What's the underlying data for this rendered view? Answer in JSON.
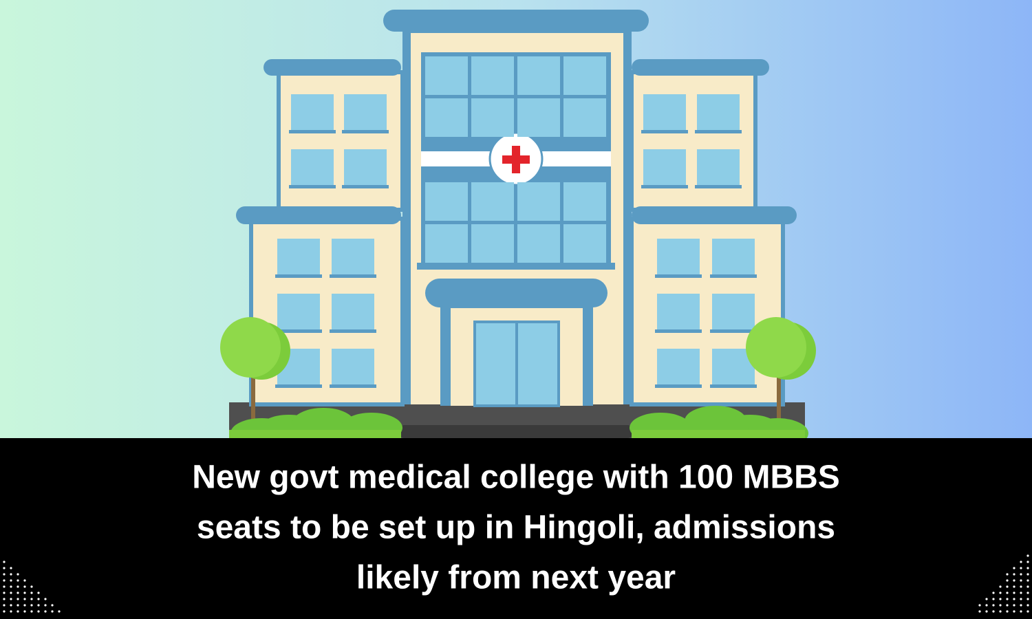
{
  "headline": {
    "lines": [
      "New govt medical college with 100 MBBS",
      "seats to be set up in Hingoli, admissions",
      "likely from next year"
    ]
  }
}
